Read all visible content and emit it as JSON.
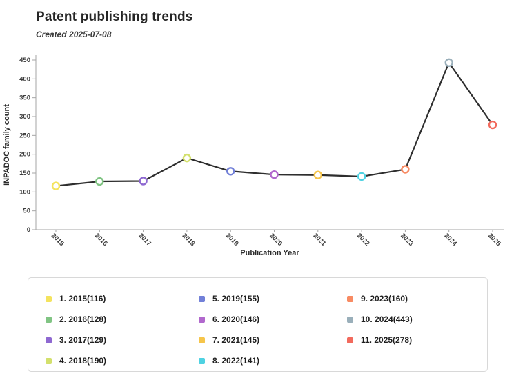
{
  "header": {
    "title": "Patent publishing trends",
    "subtitle": "Created 2025-07-08"
  },
  "chart_data": {
    "type": "line",
    "title": "Patent publishing trends",
    "xlabel": "Publication Year",
    "ylabel": "INPADOC family count",
    "categories": [
      "2015",
      "2016",
      "2017",
      "2018",
      "2019",
      "2020",
      "2021",
      "2022",
      "2023",
      "2024",
      "2025"
    ],
    "values": [
      116,
      128,
      129,
      190,
      155,
      146,
      145,
      141,
      160,
      443,
      278
    ],
    "point_colors": [
      "#F4E35E",
      "#80C483",
      "#8E68D1",
      "#D3E06C",
      "#7280D8",
      "#B168CD",
      "#F6C54B",
      "#4FD2E2",
      "#F88B63",
      "#9AAFBA",
      "#F26A5D"
    ],
    "line_color": "#2e2e2e",
    "axis_color": "#a6a6a6",
    "ylim": [
      0,
      450
    ],
    "ytick_step": 50,
    "grid": false,
    "legend_position": "bottom",
    "marker_style": "open-circle"
  },
  "legend": {
    "columns": [
      4,
      4,
      3
    ],
    "items": [
      {
        "label": "1. 2015(116)",
        "color": "#F4E35E"
      },
      {
        "label": "2. 2016(128)",
        "color": "#80C483"
      },
      {
        "label": "3. 2017(129)",
        "color": "#8E68D1"
      },
      {
        "label": "4. 2018(190)",
        "color": "#D3E06C"
      },
      {
        "label": "5. 2019(155)",
        "color": "#7280D8"
      },
      {
        "label": "6. 2020(146)",
        "color": "#B168CD"
      },
      {
        "label": "7. 2021(145)",
        "color": "#F6C54B"
      },
      {
        "label": "8. 2022(141)",
        "color": "#4FD2E2"
      },
      {
        "label": "9. 2023(160)",
        "color": "#F88B63"
      },
      {
        "label": "10. 2024(443)",
        "color": "#9AAFBA"
      },
      {
        "label": "11. 2025(278)",
        "color": "#F26A5D"
      }
    ]
  }
}
